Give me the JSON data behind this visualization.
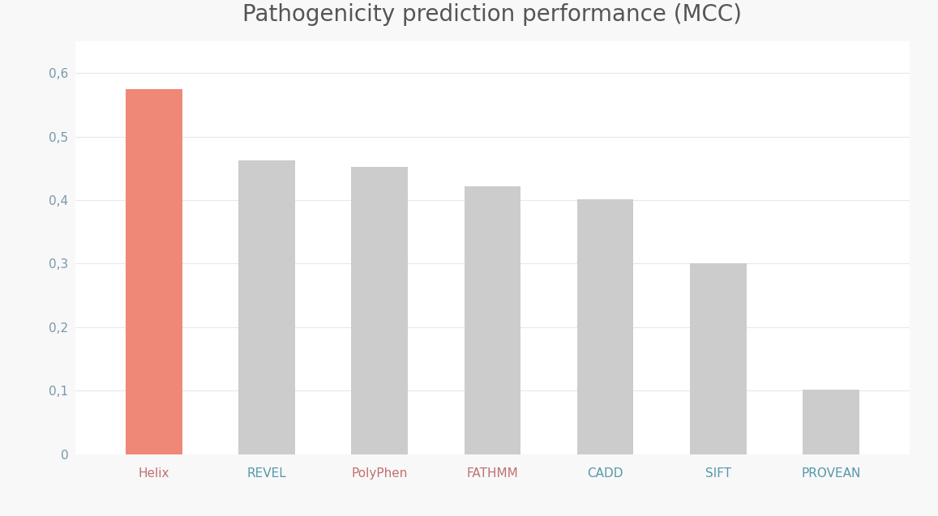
{
  "title": "Pathogenicity prediction performance (MCC)",
  "categories": [
    "Helix",
    "REVEL",
    "PolyPhen",
    "FATHMM",
    "CADD",
    "SIFT",
    "PROVEAN"
  ],
  "xtick_colors": [
    "#c07070",
    "#5599aa",
    "#c07070",
    "#c07070",
    "#5599aa",
    "#5599aa",
    "#5599aa"
  ],
  "values": [
    0.575,
    0.462,
    0.452,
    0.422,
    0.401,
    0.301,
    0.101
  ],
  "bar_colors": [
    "#f08878",
    "#cccccc",
    "#cccccc",
    "#cccccc",
    "#cccccc",
    "#cccccc",
    "#cccccc"
  ],
  "ylim": [
    0,
    0.65
  ],
  "yticks": [
    0,
    0.1,
    0.2,
    0.3,
    0.4,
    0.5,
    0.6
  ],
  "ytick_labels": [
    "0",
    "0,1",
    "0,2",
    "0,3",
    "0,4",
    "0,5",
    "0,6"
  ],
  "chart_bg": "#ffffff",
  "outer_bg": "#1a1a1a",
  "card_bg": "#f9f9f9",
  "grid_color": "#e8e8e8",
  "title_fontsize": 20,
  "tick_fontsize": 11,
  "ytick_color": "#7799aa",
  "title_color": "#555555",
  "bar_width": 0.5
}
